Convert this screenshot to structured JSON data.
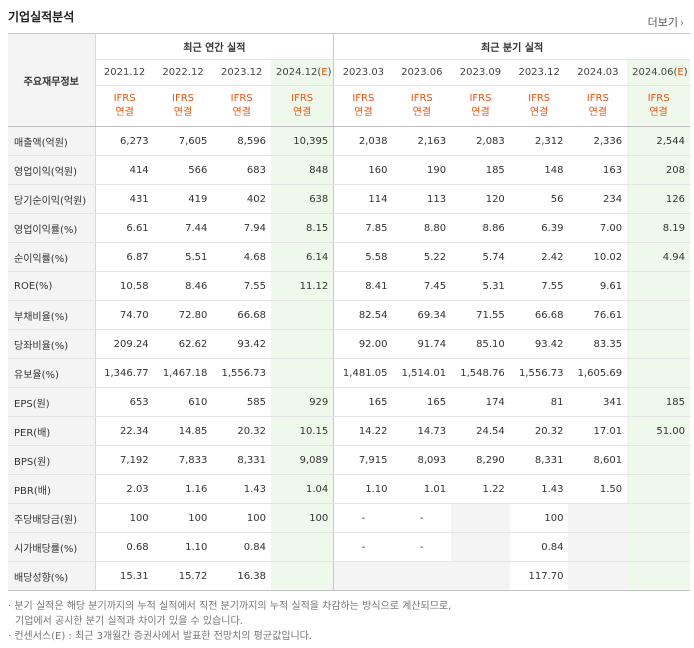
{
  "title": "기업실적분석",
  "more_label": "더보기",
  "row_head_label": "주요재무정보",
  "groups": {
    "annual": "최근 연간 실적",
    "quarter": "최근 분기 실적"
  },
  "periods": {
    "annual": [
      "2021.12",
      "2022.12",
      "2023.12",
      "2024.12(E)"
    ],
    "quarter": [
      "2023.03",
      "2023.06",
      "2023.09",
      "2023.12",
      "2024.03",
      "2024.06(E)"
    ]
  },
  "basis": {
    "line1": "IFRS",
    "line2": "연결"
  },
  "rows": [
    {
      "label": "매출액(억원)",
      "values": [
        "6,273",
        "7,605",
        "8,596",
        "10,395",
        "2,038",
        "2,163",
        "2,083",
        "2,312",
        "2,336",
        "2,544"
      ]
    },
    {
      "label": "영업이익(억원)",
      "values": [
        "414",
        "566",
        "683",
        "848",
        "160",
        "190",
        "185",
        "148",
        "163",
        "208"
      ]
    },
    {
      "label": "당기순이익(억원)",
      "values": [
        "431",
        "419",
        "402",
        "638",
        "114",
        "113",
        "120",
        "56",
        "234",
        "126"
      ]
    },
    {
      "label": "영업이익률(%)",
      "values": [
        "6.61",
        "7.44",
        "7.94",
        "8.15",
        "7.85",
        "8.80",
        "8.86",
        "6.39",
        "7.00",
        "8.19"
      ]
    },
    {
      "label": "순이익률(%)",
      "values": [
        "6.87",
        "5.51",
        "4.68",
        "6.14",
        "5.58",
        "5.22",
        "5.74",
        "2.42",
        "10.02",
        "4.94"
      ]
    },
    {
      "label": "ROE(%)",
      "values": [
        "10.58",
        "8.46",
        "7.55",
        "11.12",
        "8.41",
        "7.45",
        "5.31",
        "7.55",
        "9.61",
        ""
      ]
    },
    {
      "label": "부채비율(%)",
      "values": [
        "74.70",
        "72.80",
        "66.68",
        "",
        "82.54",
        "69.34",
        "71.55",
        "66.68",
        "76.61",
        ""
      ]
    },
    {
      "label": "당좌비율(%)",
      "values": [
        "209.24",
        "62.62",
        "93.42",
        "",
        "92.00",
        "91.74",
        "85.10",
        "93.42",
        "83.35",
        ""
      ]
    },
    {
      "label": "유보율(%)",
      "values": [
        "1,346.77",
        "1,467.18",
        "1,556.73",
        "",
        "1,481.05",
        "1,514.01",
        "1,548.76",
        "1,556.73",
        "1,605.69",
        ""
      ]
    },
    {
      "label": "EPS(원)",
      "values": [
        "653",
        "610",
        "585",
        "929",
        "165",
        "165",
        "174",
        "81",
        "341",
        "185"
      ]
    },
    {
      "label": "PER(배)",
      "values": [
        "22.34",
        "14.85",
        "20.32",
        "10.15",
        "14.22",
        "14.73",
        "24.54",
        "20.32",
        "17.01",
        "51.00"
      ]
    },
    {
      "label": "BPS(원)",
      "values": [
        "7,192",
        "7,833",
        "8,331",
        "9,089",
        "7,915",
        "8,093",
        "8,290",
        "8,331",
        "8,601",
        ""
      ]
    },
    {
      "label": "PBR(배)",
      "values": [
        "2.03",
        "1.16",
        "1.43",
        "1.04",
        "1.10",
        "1.01",
        "1.22",
        "1.43",
        "1.50",
        ""
      ]
    },
    {
      "label": "주당배당금(원)",
      "values": [
        "100",
        "100",
        "100",
        "100",
        "-",
        "-",
        "",
        "100",
        "",
        ""
      ]
    },
    {
      "label": "시가배당률(%)",
      "values": [
        "0.68",
        "1.10",
        "0.84",
        "",
        "-",
        "-",
        "",
        "0.84",
        "",
        ""
      ]
    },
    {
      "label": "배당성향(%)",
      "values": [
        "15.31",
        "15.72",
        "16.38",
        "",
        "",
        "",
        "",
        "117.70",
        "",
        ""
      ]
    }
  ],
  "notes": [
    "분기 실적은 해당 분기까지의 누적 실적에서 직전 분기까지의 누적 실적을 차감하는 방식으로 계산되므로,",
    "기업에서 공시한 분기 실적과 차이가 있을 수 있습니다.",
    "컨센서스(E) : 최근 3개월간 증권사에서 발표한 전망치의 평균값입니다."
  ],
  "colors": {
    "ifrs_text": "#e8530f",
    "estimate_bg": "#eef9eb",
    "label_bg": "#f4f4f4"
  }
}
